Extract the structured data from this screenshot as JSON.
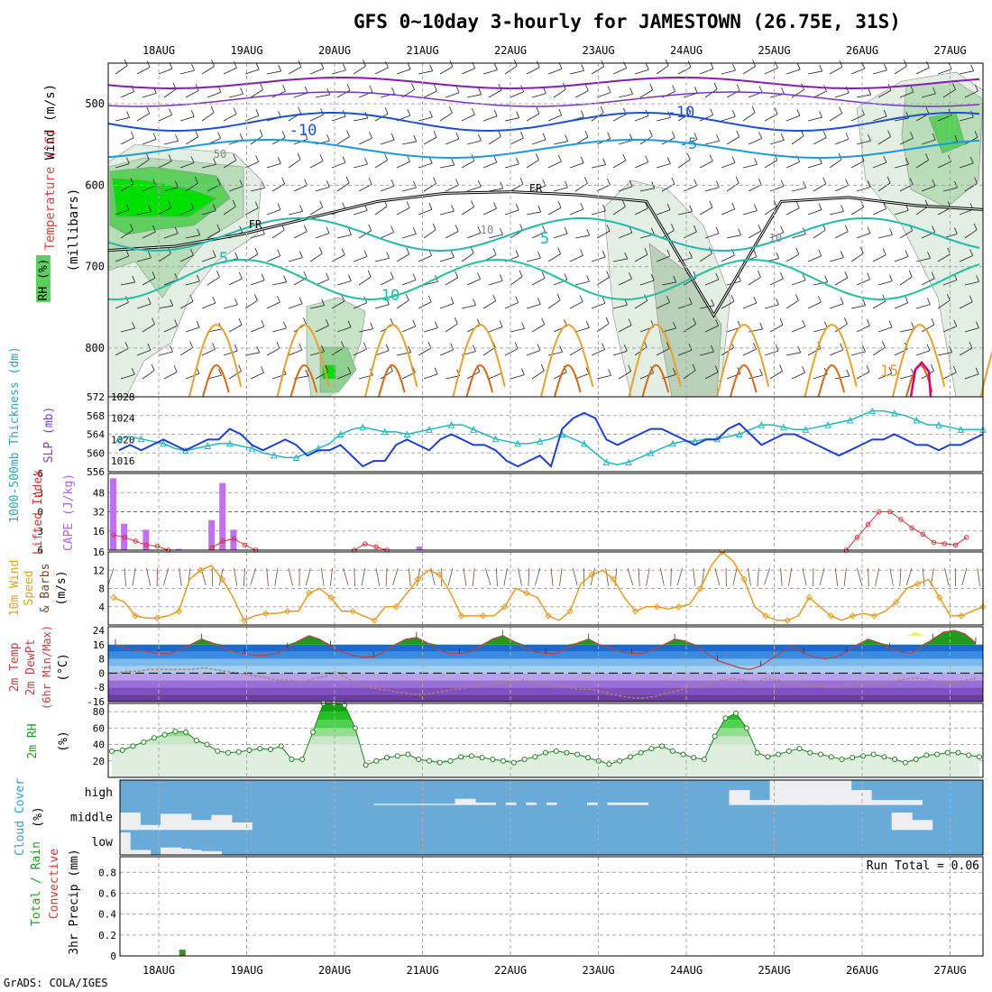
{
  "title": "GFS 0~10day 3-hourly for JAMESTOWN (26.75E, 31S)",
  "footer": "GrADS: COLA/IGES",
  "dates": [
    "18AUG",
    "19AUG",
    "20AUG",
    "21AUG",
    "22AUG",
    "23AUG",
    "24AUG",
    "25AUG",
    "26AUG",
    "27AUG"
  ],
  "chart_data": [
    {
      "type": "heatmap",
      "name_panel": "upper-air",
      "ylabel_parts": [
        "Wind (m/s)",
        "Temperature (°C)",
        "RH (%)",
        "(millibars)"
      ],
      "ylim": [
        450,
        860
      ],
      "y_ticks": [
        500,
        600,
        700,
        800
      ],
      "contour_labels": [
        "-10",
        "-10",
        "-5",
        "5",
        "5",
        "10",
        "15",
        "FR",
        "FR",
        "10",
        "10",
        "50",
        "0"
      ],
      "freezing_level_mb": [
        680,
        675,
        660,
        640,
        620,
        610,
        608,
        612,
        620,
        760,
        620,
        615,
        625,
        630
      ]
    },
    {
      "type": "line",
      "name_panel": "slp-thickness",
      "ylabel_left": "1000-500mb Thickness (dm)",
      "ylabel_right": "SLP (mb)",
      "left_ticks": [
        556,
        560,
        564,
        568,
        572
      ],
      "right_ticks": [
        1016,
        1020,
        1024,
        1028
      ],
      "series": [
        {
          "name": "SLP",
          "color": "#1a3fd6",
          "axis": "right",
          "values": [
            1018,
            1019,
            1018,
            1019,
            1020,
            1019,
            1018,
            1019,
            1020,
            1020,
            1022,
            1021,
            1019,
            1018,
            1019,
            1020,
            1019,
            1017,
            1018,
            1018,
            1019,
            1017,
            1015,
            1016,
            1016,
            1019,
            1020,
            1019,
            1018,
            1020,
            1021,
            1020,
            1019,
            1019,
            1018,
            1016,
            1015,
            1016,
            1017,
            1015,
            1022,
            1024,
            1025,
            1024,
            1020,
            1019,
            1020,
            1021,
            1022,
            1022,
            1021,
            1020,
            1019,
            1020,
            1020,
            1022,
            1023,
            1021,
            1019,
            1020,
            1021,
            1021,
            1020,
            1019,
            1018,
            1017,
            1018,
            1019,
            1020,
            1020,
            1021,
            1020,
            1019,
            1019,
            1018,
            1019,
            1019,
            1020,
            1021
          ]
        },
        {
          "name": "Thickness",
          "color": "#20b8c0",
          "axis": "left",
          "values": [
            563,
            563.5,
            563,
            562.5,
            562,
            561,
            560.5,
            561,
            561.5,
            562,
            562,
            561.5,
            561,
            560,
            559.5,
            559,
            559,
            560,
            561,
            562,
            564,
            565,
            565.5,
            565,
            564.5,
            564.5,
            564,
            564.5,
            565,
            565.5,
            566,
            566,
            565,
            564,
            563,
            562.5,
            562,
            562,
            562.5,
            563,
            564,
            563,
            562,
            560,
            558,
            557.5,
            558,
            559,
            560,
            561,
            562,
            562.5,
            562.5,
            563,
            563,
            563.5,
            564,
            565,
            566,
            566,
            565.5,
            565,
            565,
            565.5,
            566,
            566.5,
            567,
            568,
            569,
            569,
            568.5,
            568,
            567,
            566,
            566,
            565.5,
            565,
            565,
            565
          ]
        }
      ]
    },
    {
      "type": "bar",
      "name_panel": "cape-li",
      "ylabel_left": "CAPE (J/kg)",
      "ylabel_right": "Lifted Index",
      "cape_ticks": [
        16,
        32,
        48
      ],
      "li_ticks": [
        6,
        3,
        0,
        -3,
        -6
      ],
      "cape_bars": [
        {
          "step": 0,
          "value": 60
        },
        {
          "step": 1,
          "value": 22
        },
        {
          "step": 3,
          "value": 17
        },
        {
          "step": 6,
          "value": 1
        },
        {
          "step": 9,
          "value": 25
        },
        {
          "step": 10,
          "value": 56
        },
        {
          "step": 11,
          "value": 17
        },
        {
          "step": 28,
          "value": 3
        }
      ],
      "lifted_index": [
        {
          "step": 0,
          "value": 3.6
        },
        {
          "step": 1,
          "value": 4
        },
        {
          "step": 2,
          "value": 4.6
        },
        {
          "step": 3,
          "value": 5.2
        },
        {
          "step": 4,
          "value": 5.4
        },
        {
          "step": 5,
          "value": 6
        },
        {
          "step": 9,
          "value": 5.6
        },
        {
          "step": 10,
          "value": 4.6
        },
        {
          "step": 11,
          "value": 4.2
        },
        {
          "step": 12,
          "value": 5.2
        },
        {
          "step": 13,
          "value": 6
        },
        {
          "step": 22,
          "value": 6
        },
        {
          "step": 23,
          "value": 5
        },
        {
          "step": 24,
          "value": 5.5
        },
        {
          "step": 25,
          "value": 6
        },
        {
          "step": 67,
          "value": 6
        },
        {
          "step": 68,
          "value": 4
        },
        {
          "step": 69,
          "value": 2
        },
        {
          "step": 70,
          "value": 0
        },
        {
          "step": 71,
          "value": 0
        },
        {
          "step": 72,
          "value": 1.2
        },
        {
          "step": 73,
          "value": 2.5
        },
        {
          "step": 74,
          "value": 3.5
        },
        {
          "step": 75,
          "value": 4.8
        },
        {
          "step": 76,
          "value": 5
        },
        {
          "step": 77,
          "value": 5.2
        },
        {
          "step": 78,
          "value": 4
        }
      ]
    },
    {
      "type": "line",
      "name_panel": "wind10m",
      "ylabel": "10m Wind Speed & Barbs (m/s)",
      "y_ticks": [
        4,
        8,
        12,
        16
      ],
      "ylim": [
        0,
        16
      ],
      "series": [
        {
          "name": "10m Wind Speed",
          "color": "#e69a20",
          "values": [
            6,
            5,
            2,
            1.5,
            1.5,
            2,
            3,
            10,
            12,
            13,
            10,
            6,
            1,
            2,
            2.5,
            2.5,
            3,
            3,
            7,
            8,
            6,
            3,
            3,
            2,
            1,
            4,
            4,
            7,
            10,
            12,
            11,
            7,
            2,
            2,
            2,
            2,
            4,
            8,
            7,
            6,
            2,
            1,
            3,
            9,
            11,
            12,
            10,
            6,
            3,
            4,
            4,
            3.5,
            4,
            4.5,
            8,
            13,
            16,
            14,
            10,
            4,
            2,
            1,
            1,
            2,
            6,
            4,
            2,
            1,
            2,
            2.5,
            2,
            3,
            5,
            8,
            9,
            10,
            6,
            2,
            2,
            3,
            4
          ]
        }
      ]
    },
    {
      "type": "area",
      "name_panel": "temperature",
      "ylabel": "2m Temp 2m DewPt (6hr Min/Max) (°C)",
      "y_ticks": [
        24,
        16,
        8,
        0,
        -8,
        -16
      ],
      "ylim": [
        -16,
        24
      ],
      "series": [
        {
          "name": "2m Temp",
          "values": [
            16,
            14,
            13,
            12,
            11,
            11,
            13,
            16,
            19,
            17,
            14,
            12,
            11,
            10,
            10,
            11,
            14,
            18,
            21,
            19,
            15,
            12,
            10,
            9,
            9,
            12,
            16,
            19,
            20,
            17,
            13,
            11,
            11,
            12,
            15,
            19,
            21,
            18,
            14,
            12,
            11,
            11,
            14,
            17,
            19,
            16,
            14,
            12,
            11,
            11,
            13,
            16,
            19,
            18,
            15,
            11,
            7,
            5,
            3,
            2,
            4,
            8,
            12,
            15,
            11,
            9,
            8,
            9,
            12,
            16,
            19,
            17,
            14,
            12,
            11,
            15,
            19,
            23,
            24,
            22,
            17
          ]
        },
        {
          "name": "2m DewPt",
          "values": [
            0,
            1,
            1,
            2,
            2,
            2,
            2,
            2,
            3,
            2,
            1,
            0,
            -1,
            -2,
            -3,
            -4,
            -4,
            -5,
            -3,
            -2,
            1,
            -3,
            -6,
            -8,
            -9,
            -10,
            -11,
            -12,
            -12,
            -11,
            -10,
            -9,
            -8,
            -7,
            -6,
            -5,
            -5,
            -4,
            -5,
            -6,
            -7,
            -8,
            -9,
            -9,
            -10,
            -12,
            -13,
            -14,
            -14,
            -13,
            -11,
            -10,
            -8,
            -7,
            -5,
            -4,
            -3,
            -4,
            -5,
            -3,
            -4,
            -5,
            -6,
            -7,
            -7,
            -8,
            -7,
            -6,
            -5,
            -6,
            -5,
            -4,
            -3,
            -3,
            -4,
            -5,
            -5,
            -4,
            -3
          ]
        }
      ]
    },
    {
      "type": "area",
      "name_panel": "rh2m",
      "ylabel": "2m RH (%)",
      "y_ticks": [
        20,
        40,
        60,
        80
      ],
      "ylim": [
        0,
        90
      ],
      "values": [
        32,
        33,
        38,
        43,
        48,
        52,
        56,
        55,
        45,
        40,
        32,
        30,
        31,
        33,
        35,
        34,
        38,
        22,
        22,
        55,
        90,
        90,
        88,
        60,
        15,
        20,
        24,
        26,
        28,
        22,
        20,
        18,
        20,
        25,
        26,
        24,
        22,
        20,
        18,
        22,
        25,
        30,
        32,
        30,
        28,
        24,
        20,
        16,
        20,
        25,
        30,
        35,
        38,
        32,
        28,
        24,
        22,
        50,
        72,
        78,
        60,
        30,
        25,
        28,
        32,
        35,
        30,
        28,
        25,
        22,
        24,
        26,
        28,
        25,
        22,
        18,
        22,
        27,
        28,
        30,
        30,
        27,
        25
      ]
    },
    {
      "type": "bar",
      "name_panel": "cloud-cover",
      "ylabel": "Cloud Cover (%)",
      "levels": [
        "high",
        "middle",
        "low"
      ],
      "high": [
        0,
        0,
        0,
        0,
        0,
        0,
        0,
        0,
        0,
        0,
        0,
        0,
        0,
        0,
        0,
        0,
        0,
        0,
        0,
        0,
        0,
        0,
        0,
        0,
        0,
        5,
        5,
        5,
        5,
        5,
        5,
        5,
        5,
        25,
        25,
        10,
        10,
        0,
        10,
        0,
        10,
        0,
        10,
        0,
        0,
        0,
        10,
        0,
        10,
        10,
        10,
        10,
        0,
        0,
        0,
        0,
        0,
        0,
        0,
        0,
        60,
        60,
        20,
        20,
        100,
        100,
        100,
        100,
        100,
        100,
        100,
        100,
        60,
        60,
        20,
        20,
        20,
        20,
        20,
        0,
        0,
        0,
        0,
        0,
        0
      ],
      "middle": [
        70,
        70,
        20,
        20,
        65,
        65,
        65,
        40,
        40,
        60,
        60,
        30,
        30,
        0,
        0,
        0,
        0,
        0,
        0,
        0,
        0,
        0,
        0,
        0,
        0,
        0,
        0,
        0,
        0,
        0,
        0,
        0,
        0,
        0,
        0,
        0,
        0,
        0,
        0,
        0,
        0,
        0,
        0,
        0,
        0,
        0,
        0,
        0,
        0,
        0,
        0,
        0,
        0,
        0,
        0,
        0,
        0,
        0,
        0,
        0,
        0,
        0,
        0,
        0,
        0,
        0,
        0,
        0,
        0,
        0,
        0,
        0,
        0,
        0,
        0,
        0,
        70,
        70,
        40,
        40,
        0,
        0,
        0
      ],
      "low": [
        90,
        20,
        20,
        0,
        30,
        30,
        25,
        20,
        15,
        15,
        0,
        0,
        0,
        0,
        0,
        0,
        0,
        0,
        0,
        0,
        0,
        0,
        0,
        0,
        0,
        0,
        0,
        0,
        0,
        0,
        0,
        0,
        0,
        0,
        0,
        0,
        0,
        0,
        0,
        0,
        0,
        0,
        0,
        0,
        0,
        0,
        0,
        0,
        0,
        0,
        0,
        0,
        0,
        0,
        0,
        0,
        0,
        0,
        0,
        0,
        0,
        0,
        0,
        0,
        0,
        0,
        0,
        0,
        0,
        0,
        0,
        0,
        0,
        0,
        0,
        0,
        0,
        0,
        0,
        0,
        0,
        0,
        0
      ]
    },
    {
      "type": "bar",
      "name_panel": "precip",
      "ylabel": "3hr Precip (mm)",
      "ylabel_parts": [
        "Total / Rain",
        "Convective"
      ],
      "y_ticks": [
        0,
        0.2,
        0.4,
        0.6,
        0.8
      ],
      "ylim": [
        0,
        0.95
      ],
      "run_total_label": "Run Total = 0.06",
      "bars": [
        {
          "step": 6,
          "total": 0.06,
          "convective": 0.03
        }
      ]
    }
  ]
}
